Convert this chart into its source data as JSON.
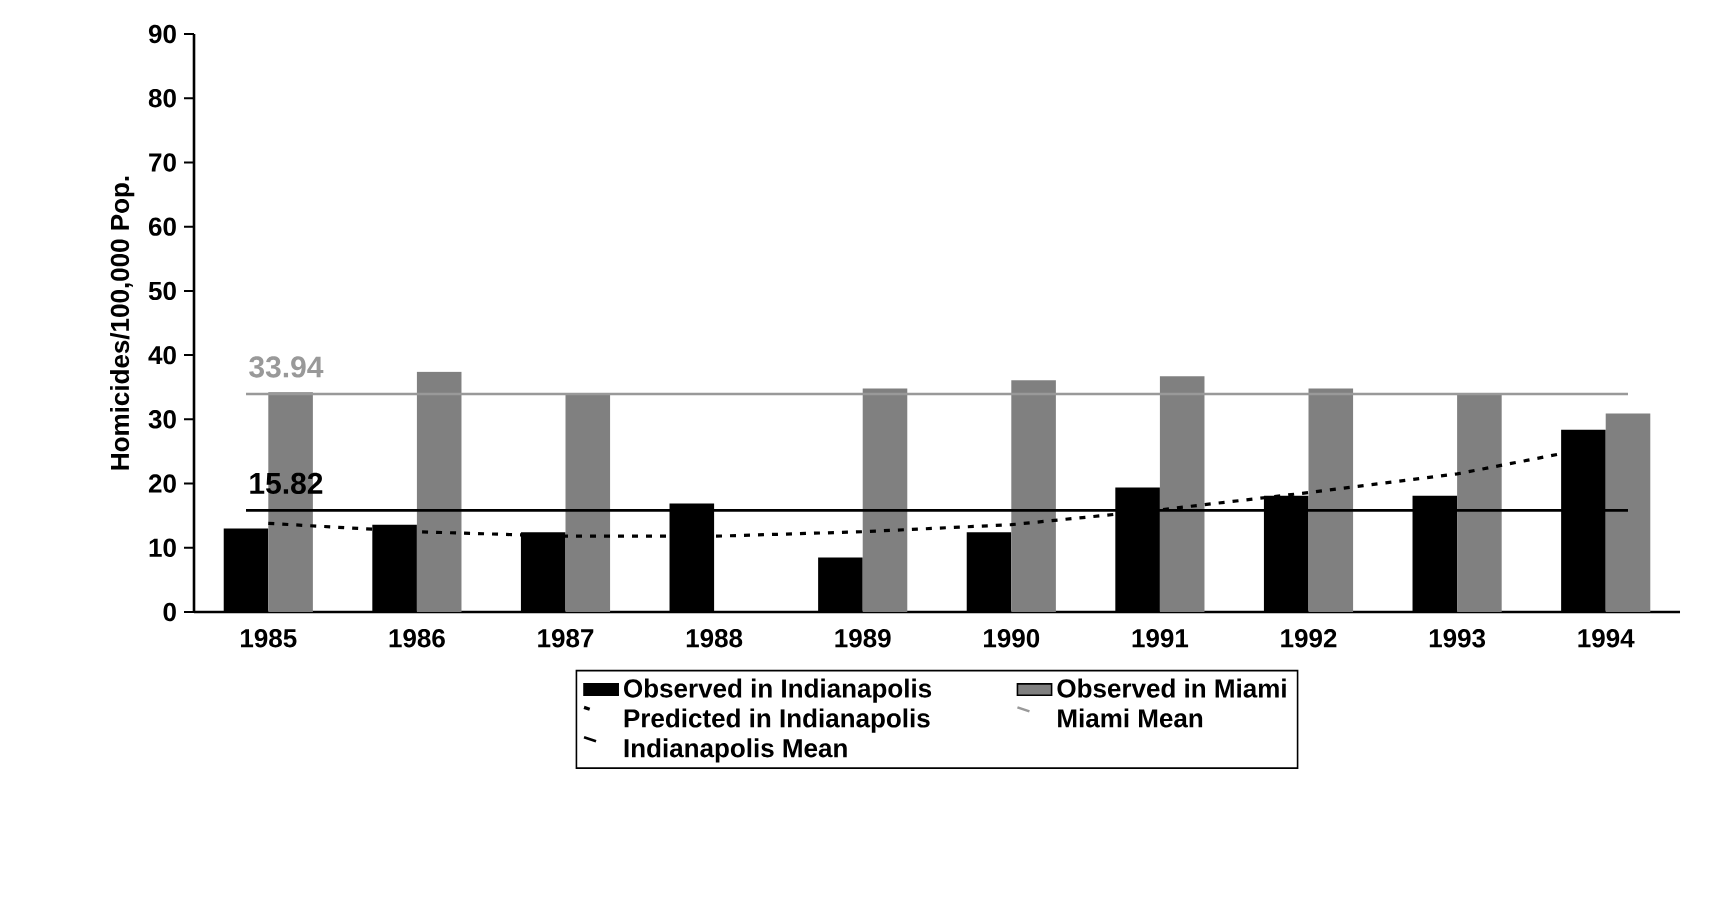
{
  "chart_data": {
    "type": "bar",
    "ylabel": "Homicides/100,000 Pop.",
    "categories": [
      "1985",
      "1986",
      "1987",
      "1988",
      "1989",
      "1990",
      "1991",
      "1992",
      "1993",
      "1994"
    ],
    "series": [
      {
        "name": "Observed in Indianapolis",
        "color": "#000000",
        "values": [
          13.0,
          13.6,
          12.4,
          16.9,
          8.5,
          12.4,
          19.4,
          18.1,
          18.1,
          28.4
        ]
      },
      {
        "name": "Observed in Miami",
        "color": "#808080",
        "values": [
          34.2,
          37.4,
          33.8,
          null,
          34.8,
          36.1,
          36.7,
          34.8,
          33.9,
          30.9
        ]
      },
      {
        "name": "Predicted in Indianapolis",
        "type": "line",
        "color": "#000000",
        "line_style": "dashed",
        "values": [
          13.8,
          12.5,
          11.8,
          11.8,
          12.5,
          13.6,
          15.9,
          18.6,
          21.5,
          26.0
        ]
      }
    ],
    "ref_lines": [
      {
        "axis": "y",
        "value": 33.94,
        "label": "Miami Mean",
        "color": "#999999"
      },
      {
        "axis": "y",
        "value": 15.82,
        "label": "Indianapolis Mean",
        "color": "#000000"
      }
    ],
    "annotations": [
      {
        "text": "33.94",
        "x": "1985",
        "y": 33.94
      },
      {
        "text": "15.82",
        "x": "1985",
        "y": 15.82
      }
    ],
    "ylim": [
      0,
      90
    ],
    "yticks": [
      0,
      10,
      20,
      30,
      40,
      50,
      60,
      70,
      80,
      90
    ],
    "grid": false,
    "legend": "bottom"
  }
}
